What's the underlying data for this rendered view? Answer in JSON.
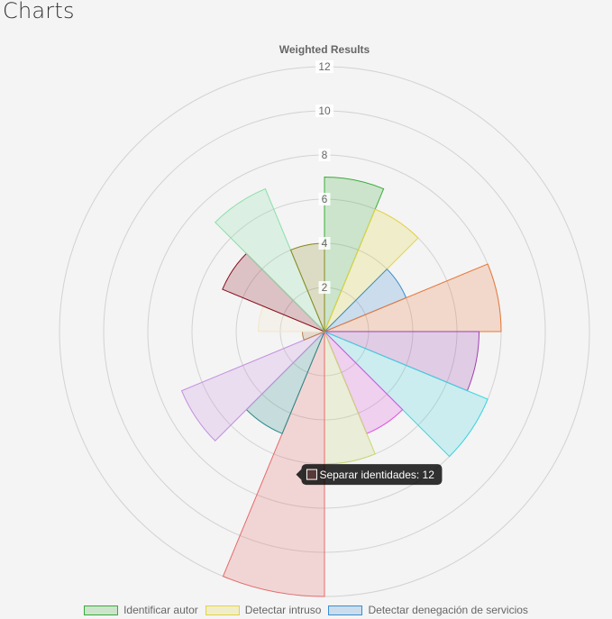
{
  "page": {
    "heading": "Charts"
  },
  "chart_data": {
    "type": "polarArea",
    "title": "Weighted Results",
    "r_ticks": [
      2,
      4,
      6,
      8,
      10,
      12
    ],
    "r_max": 12,
    "series": [
      {
        "name": "Identificar autor",
        "value": 7,
        "color": "#3aab3a"
      },
      {
        "name": "Detectar intruso",
        "value": 6,
        "color": "#e4d43a"
      },
      {
        "name": "Detectar denegación de servicios",
        "value": 4,
        "color": "#3a8ed0"
      },
      {
        "name": "",
        "value": 8,
        "color": "#e8773a"
      },
      {
        "name": "",
        "value": 7,
        "color": "#a040b0"
      },
      {
        "name": "",
        "value": 8,
        "color": "#3ad6e0"
      },
      {
        "name": "",
        "value": 5,
        "color": "#e050e0"
      },
      {
        "name": "",
        "value": 6,
        "color": "#c8d670"
      },
      {
        "name": "Separar identidades",
        "value": 12,
        "color": "#e66a6a"
      },
      {
        "name": "",
        "value": 5,
        "color": "#2a8a8a"
      },
      {
        "name": "",
        "value": 7,
        "color": "#c48ee0"
      },
      {
        "name": "",
        "value": 1,
        "color": "#b8804a"
      },
      {
        "name": "",
        "value": 3,
        "color": "#f0e8c8"
      },
      {
        "name": "",
        "value": 5,
        "color": "#8a1020"
      },
      {
        "name": "",
        "value": 7,
        "color": "#88e0a8"
      },
      {
        "name": "",
        "value": 4,
        "color": "#8a8a20"
      }
    ],
    "tooltip": {
      "series_index": 8,
      "text": "Separar identidades: 12"
    },
    "legend_position": "bottom",
    "legend_visible": [
      0,
      1,
      2
    ]
  }
}
